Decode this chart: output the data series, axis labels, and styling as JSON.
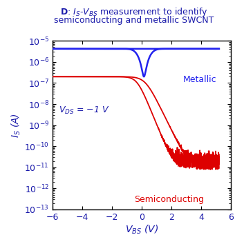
{
  "xlabel": "$V_{BS}$ (V)",
  "ylabel": "$I_S$ (A)",
  "xlim": [
    -6,
    6
  ],
  "ylim_log": [
    -13,
    -5
  ],
  "label_metallic": "Metallic",
  "label_semiconducting": "Semiconducting",
  "label_vds": "$V_{DS}$ = −1 V",
  "color_metallic": "#2222ee",
  "color_semiconducting": "#dd0000",
  "background": "#ffffff",
  "title_color": "#1a1aaa"
}
